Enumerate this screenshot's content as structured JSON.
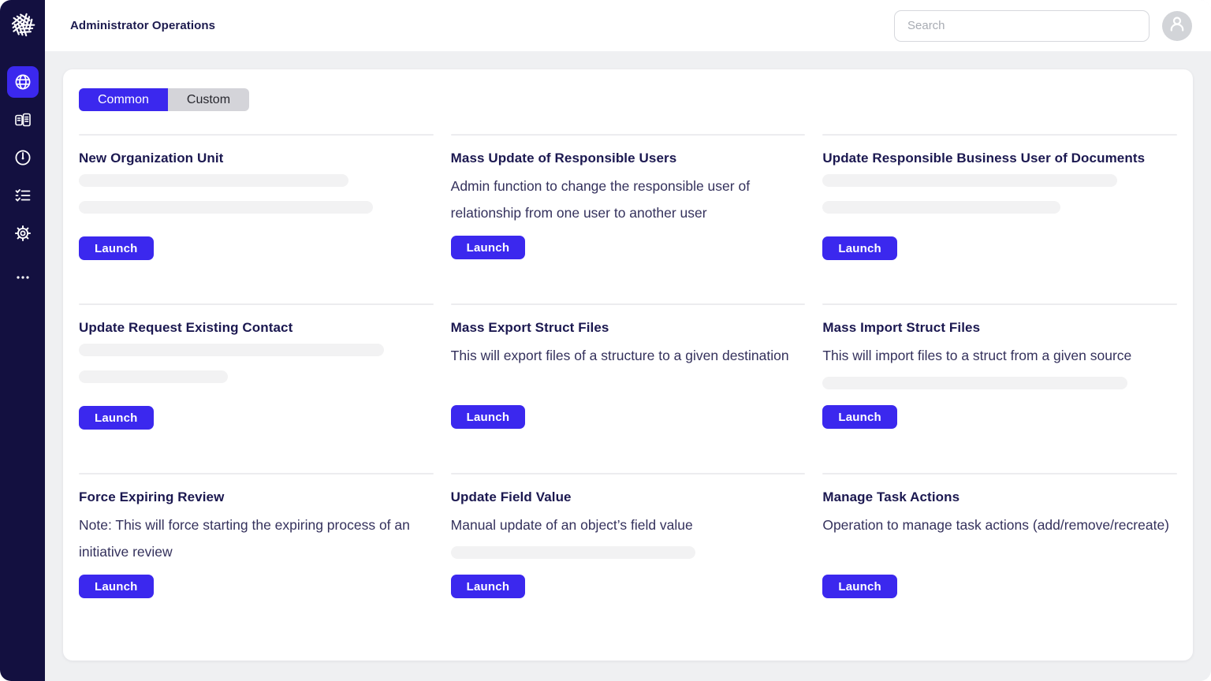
{
  "header": {
    "title": "Administrator Operations",
    "search_placeholder": "Search"
  },
  "sidebar": {
    "icons": [
      "logo-icon",
      "globe-icon",
      "library-icon",
      "gauge-icon",
      "checklist-icon",
      "settings-icon",
      "more-icon"
    ],
    "active_item": "globe"
  },
  "tabs": [
    {
      "label": "Common",
      "active": true
    },
    {
      "label": "Custom",
      "active": false
    }
  ],
  "labels": {
    "launch": "Launch"
  },
  "colors": {
    "accent": "#3b28ee",
    "sidebar_bg": "#131040",
    "content_bg": "#eff0f2",
    "title_text": "#1b1850",
    "desc_text": "#34315c",
    "skeleton": "#f2f2f3",
    "inactive_tab_bg": "#d4d4d9"
  },
  "cards": [
    {
      "title": "New Organization Unit",
      "skeleton_bars": [
        76,
        83
      ]
    },
    {
      "title": "Mass Update of Responsible Users",
      "description": "Admin function to change the responsible user of relationship from one user to another user"
    },
    {
      "title": "Update Responsible Business User of Documents",
      "skeleton_bars": [
        83,
        67
      ]
    },
    {
      "title": "Update Request Existing Contact",
      "skeleton_bars": [
        86,
        42
      ]
    },
    {
      "title": "Mass Export Struct Files",
      "description": "This will export files of a structure to a given destination"
    },
    {
      "title": "Mass Import Struct Files",
      "description": "This will import files to a struct from a given source",
      "skeleton_bars": [
        86
      ]
    },
    {
      "title": "Force Expiring Review",
      "description": "Note: This will force starting the expiring process of an initiative review"
    },
    {
      "title": "Update Field Value",
      "description": "Manual update of an object’s field value",
      "skeleton_bars": [
        69
      ]
    },
    {
      "title": "Manage Task Actions",
      "description": "Operation to manage task actions (add/remove/recreate)"
    }
  ]
}
